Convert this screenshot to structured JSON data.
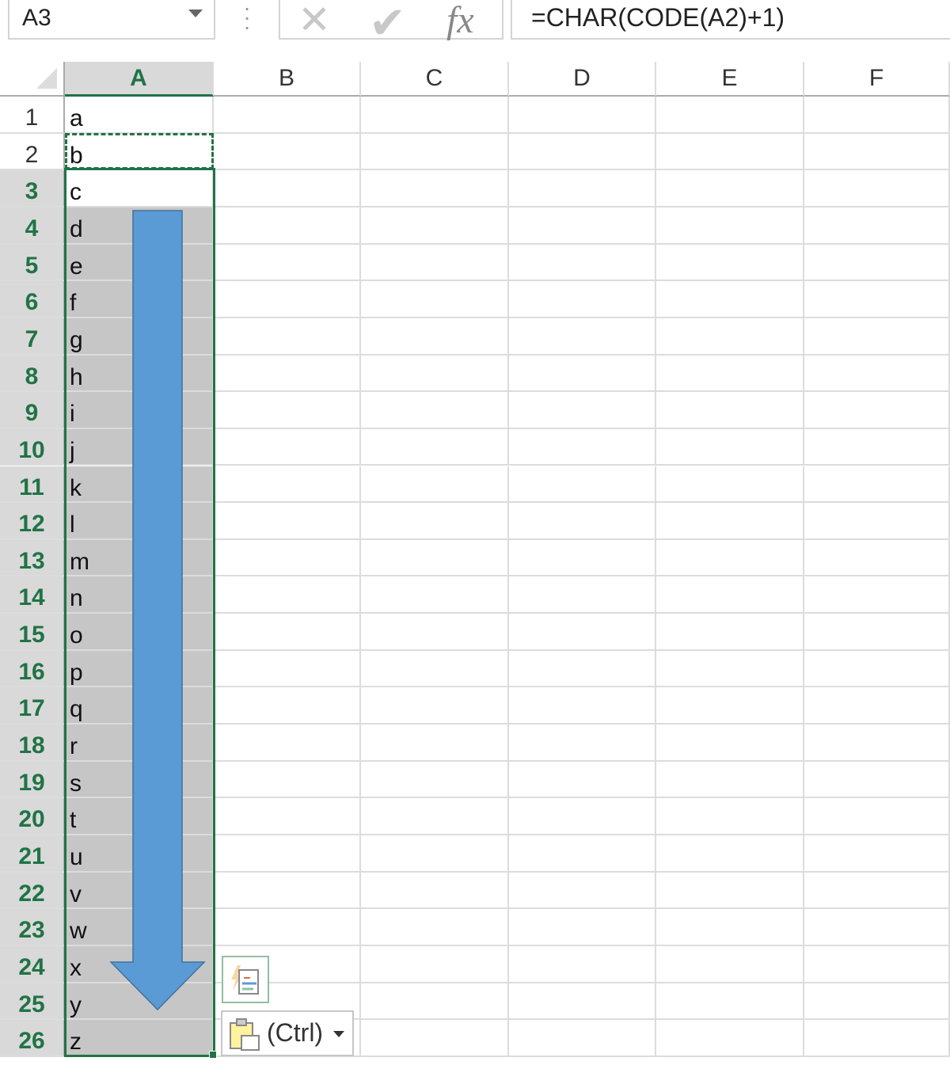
{
  "namebox": {
    "value": "A3"
  },
  "formula_bar": {
    "cancel_icon": "x-icon",
    "enter_icon": "check-icon",
    "fx_label": "fx",
    "formula": "=CHAR(CODE(A2)+1)"
  },
  "columns": [
    "A",
    "B",
    "C",
    "D",
    "E",
    "F"
  ],
  "selected_column": "A",
  "rows": [
    "1",
    "2",
    "3",
    "4",
    "5",
    "6",
    "7",
    "8",
    "9",
    "10",
    "11",
    "12",
    "13",
    "14",
    "15",
    "16",
    "17",
    "18",
    "19",
    "20",
    "21",
    "22",
    "23",
    "24",
    "25",
    "26"
  ],
  "column_a": [
    "a",
    "b",
    "c",
    "d",
    "e",
    "f",
    "g",
    "h",
    "i",
    "j",
    "k",
    "l",
    "m",
    "n",
    "o",
    "p",
    "q",
    "r",
    "s",
    "t",
    "u",
    "v",
    "w",
    "x",
    "y",
    "z"
  ],
  "selection": "A3:A26",
  "copy_source": "A2",
  "arrow_color": "#5b9bd5",
  "accent": "#217346",
  "quick_analysis_icon": "flash-fill-icon",
  "paste_options": {
    "label": "(Ctrl)",
    "icon": "clipboard-icon"
  }
}
